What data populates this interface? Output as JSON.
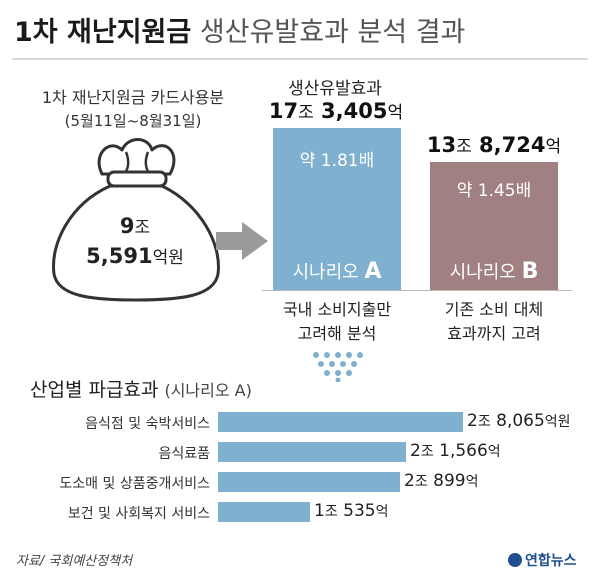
{
  "title": {
    "main": "1차 재난지원금",
    "sub": "생산유발효과 분석 결과"
  },
  "card": {
    "label": "1차 재난지원금 카드사용분",
    "period": "(5월11일~8월31일)",
    "amount_line1": "9",
    "amount_line1_unit": "조",
    "amount_line2": "5,591",
    "amount_line2_unit": "억원"
  },
  "colors": {
    "scenario_a": "#7fb0cf",
    "scenario_b": "#a08080",
    "industry_bar": "#7fb0cf",
    "arrow": "#9a9a9a",
    "bag": "#ffffff"
  },
  "scenarios": {
    "a": {
      "title": "생산유발효과",
      "value_jo": "17",
      "unit_jo": "조",
      "value_eok": "3,405",
      "unit_eok": "억",
      "ratio": "약 1.81배",
      "name_prefix": "시나리오 ",
      "name_letter": "A",
      "desc_line1": "국내 소비지출만",
      "desc_line2": "고려해 분석"
    },
    "b": {
      "value_jo": "13",
      "unit_jo": "조",
      "value_eok": "8,724",
      "unit_eok": "억",
      "ratio": "약 1.45배",
      "name_prefix": "시나리오 ",
      "name_letter": "B",
      "desc_line1": "기존 소비 대체",
      "desc_line2": "효과까지 고려"
    }
  },
  "industry": {
    "title": "산업별 파급효과",
    "subtitle": "(시나리오 A)"
  },
  "chart_data": {
    "type": "bar",
    "orientation": "horizontal",
    "title": "산업별 파급효과",
    "categories": [
      "음식점 및 숙박서비스",
      "음식료품",
      "도소매 및 상품중개서비스",
      "보건 및 사회복지 서비스"
    ],
    "values": [
      28065,
      21566,
      20899,
      10535
    ],
    "value_unit": "억원",
    "labels": [
      {
        "jo": "2",
        "jo_unit": "조",
        "eok": "8,065",
        "eok_unit": "억원"
      },
      {
        "jo": "2",
        "jo_unit": "조",
        "eok": "1,566",
        "eok_unit": "억"
      },
      {
        "jo": "2",
        "jo_unit": "조",
        "eok": "899",
        "eok_unit": "억"
      },
      {
        "jo": "1",
        "jo_unit": "조",
        "eok": "535",
        "eok_unit": "억"
      }
    ]
  },
  "source": "자료/ 국회예산정책처",
  "logo": "연합뉴스"
}
